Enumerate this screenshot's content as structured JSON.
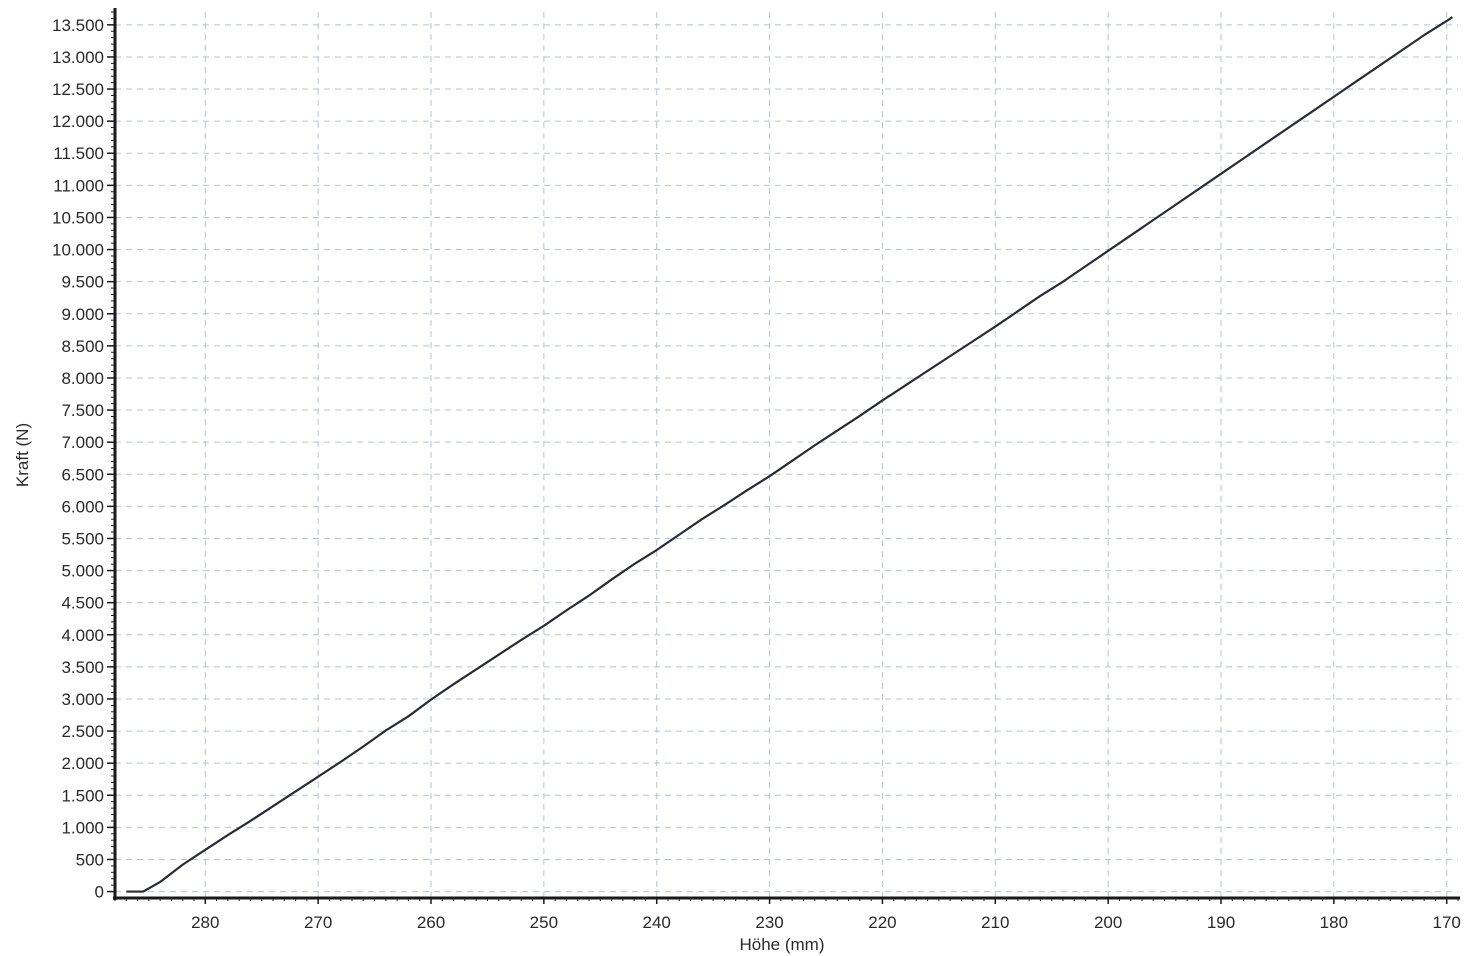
{
  "chart_data": {
    "type": "line",
    "title": "",
    "xlabel": "Höhe (mm)",
    "ylabel": "Kraft (N)",
    "x_reversed": true,
    "xlim": [
      288,
      169
    ],
    "ylim": [
      -100,
      13700
    ],
    "grid": true,
    "x_ticks": [
      280,
      270,
      260,
      250,
      240,
      230,
      220,
      210,
      200,
      190,
      180,
      170
    ],
    "x_tick_labels": [
      "280",
      "270",
      "260",
      "250",
      "240",
      "230",
      "220",
      "210",
      "200",
      "190",
      "180",
      "170"
    ],
    "y_ticks": [
      0,
      500,
      1000,
      1500,
      2000,
      2500,
      3000,
      3500,
      4000,
      4500,
      5000,
      5500,
      6000,
      6500,
      7000,
      7500,
      8000,
      8500,
      9000,
      9500,
      10000,
      10500,
      11000,
      11500,
      12000,
      12500,
      13000,
      13500
    ],
    "y_tick_labels": [
      "0",
      "500",
      "1.000",
      "1.500",
      "2.000",
      "2.500",
      "3.000",
      "3.500",
      "4.000",
      "4.500",
      "5.000",
      "5.500",
      "6.000",
      "6.500",
      "7.000",
      "7.500",
      "8.000",
      "8.500",
      "9.000",
      "9.500",
      "10.000",
      "10.500",
      "11.000",
      "11.500",
      "12.000",
      "12.500",
      "13.000",
      "13.500"
    ],
    "series": [
      {
        "color": "#2b2b36",
        "x": [
          287.0,
          285.5,
          284.0,
          282.0,
          280.0,
          278.0,
          276.0,
          274.0,
          272.0,
          270.0,
          268.0,
          266.0,
          264.0,
          262.0,
          260.0,
          258.0,
          256.0,
          254.0,
          252.0,
          250.0,
          248.0,
          246.0,
          244.0,
          242.0,
          240.0,
          238.0,
          236.0,
          234.0,
          232.0,
          230.0,
          228.0,
          226.0,
          224.0,
          222.0,
          220.0,
          218.0,
          216.0,
          214.0,
          212.0,
          210.0,
          208.0,
          206.0,
          204.0,
          202.0,
          200.0,
          198.0,
          196.0,
          194.0,
          192.0,
          190.0,
          188.0,
          186.0,
          184.0,
          182.0,
          180.0,
          178.0,
          176.0,
          174.0,
          172.0,
          170.0,
          169.5
        ],
        "y": [
          0,
          0,
          150,
          420,
          650,
          880,
          1100,
          1330,
          1560,
          1790,
          2020,
          2260,
          2510,
          2730,
          2990,
          3230,
          3460,
          3690,
          3920,
          4140,
          4380,
          4610,
          4860,
          5100,
          5320,
          5560,
          5800,
          6020,
          6250,
          6470,
          6710,
          6950,
          7180,
          7410,
          7650,
          7880,
          8110,
          8340,
          8570,
          8800,
          9040,
          9280,
          9500,
          9740,
          9980,
          10220,
          10460,
          10700,
          10940,
          11180,
          11420,
          11660,
          11900,
          12140,
          12380,
          12620,
          12860,
          13100,
          13340,
          13560,
          13620
        ]
      }
    ]
  }
}
